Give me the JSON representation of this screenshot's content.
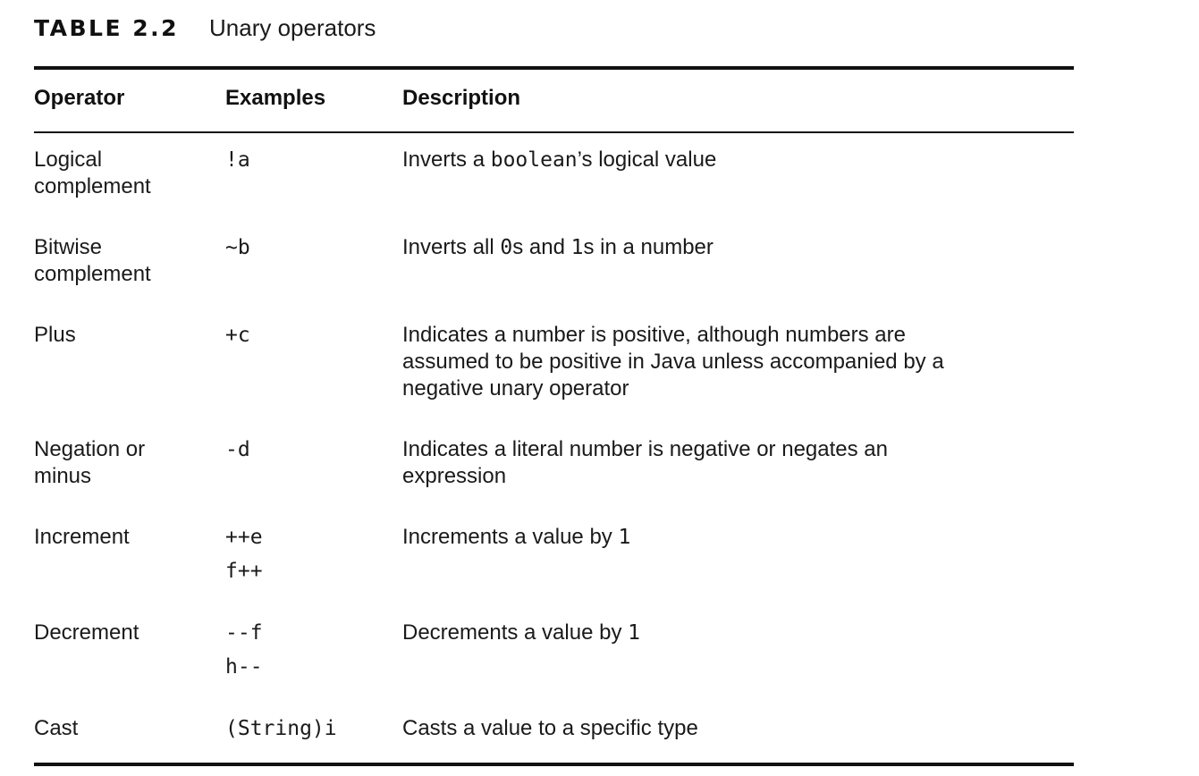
{
  "caption": {
    "label": "TABLE 2.2",
    "title": "Unary operators"
  },
  "headers": {
    "operator": "Operator",
    "examples": "Examples",
    "description": "Description"
  },
  "rows": [
    {
      "operator": [
        "Logical",
        "complement"
      ],
      "examples": [
        "!a"
      ],
      "description": [
        [
          {
            "t": "Inverts a "
          },
          {
            "t": "boolean",
            "code": true
          },
          {
            "t": "’s logical value"
          }
        ]
      ]
    },
    {
      "operator": [
        "Bitwise",
        "complement"
      ],
      "examples": [
        "~b"
      ],
      "description": [
        [
          {
            "t": "Inverts all "
          },
          {
            "t": "0",
            "code": true
          },
          {
            "t": "s and "
          },
          {
            "t": "1",
            "code": true
          },
          {
            "t": "s in a number"
          }
        ]
      ]
    },
    {
      "operator": [
        "Plus"
      ],
      "examples": [
        "+c"
      ],
      "description": [
        [
          {
            "t": "Indicates a number is positive, although numbers are"
          }
        ],
        [
          {
            "t": "assumed to be positive in Java unless accompanied by a"
          }
        ],
        [
          {
            "t": "negative unary operator"
          }
        ]
      ]
    },
    {
      "operator": [
        "Negation or",
        "minus"
      ],
      "examples": [
        "-d"
      ],
      "description": [
        [
          {
            "t": "Indicates a literal number is negative or negates an"
          }
        ],
        [
          {
            "t": "expression"
          }
        ]
      ]
    },
    {
      "operator": [
        "Increment"
      ],
      "examples": [
        "++e",
        "f++"
      ],
      "description": [
        [
          {
            "t": "Increments a value by "
          },
          {
            "t": "1",
            "code": true
          }
        ]
      ]
    },
    {
      "operator": [
        "Decrement"
      ],
      "examples": [
        "--f",
        "h--"
      ],
      "description": [
        [
          {
            "t": "Decrements a value by "
          },
          {
            "t": "1",
            "code": true
          }
        ]
      ]
    },
    {
      "operator": [
        "Cast"
      ],
      "examples": [
        "(String)i"
      ],
      "description": [
        [
          {
            "t": "Casts a value to a specific type"
          }
        ]
      ]
    }
  ]
}
